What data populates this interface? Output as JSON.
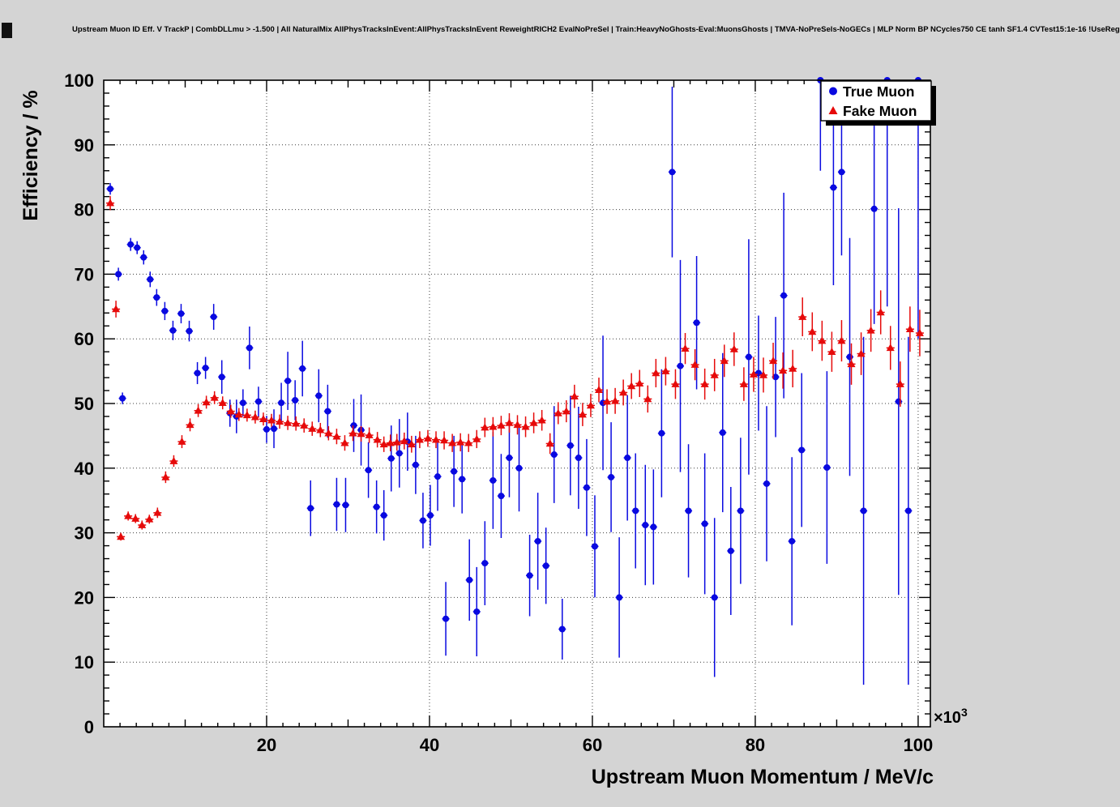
{
  "chart_data": {
    "type": "scatter",
    "title": "Upstream Muon ID Eff. V TrackP | CombDLLmu > -1.500 | All NaturalMix AllPhysTracksInEvent:AllPhysTracksInEvent ReweightRICH2 EvalNoPreSel | Train:HeavyNoGhosts-Eval:MuonsGhosts | TMVA-NoPreSels-NoGECs | MLP Norm BP NCycles750 CE tanh SF1.4 CVTest15:1e-16 !UseReg",
    "xlabel": "Upstream Muon Momentum / MeV/c",
    "ylabel": "Efficiency / %",
    "x_axis_exponent": {
      "base": "×10",
      "sup": "3"
    },
    "xlim": [
      0,
      101.5
    ],
    "ylim": [
      0,
      100
    ],
    "grid": true,
    "x_ticks": {
      "values": [
        20,
        40,
        60,
        80,
        100
      ],
      "labels": [
        "20",
        "40",
        "60",
        "80",
        "100"
      ],
      "grid": [
        20,
        40,
        60,
        80,
        100
      ]
    },
    "y_ticks": {
      "values": [
        0,
        10,
        20,
        30,
        40,
        50,
        60,
        70,
        80,
        90,
        100
      ],
      "labels": [
        "0",
        "10",
        "20",
        "30",
        "40",
        "50",
        "60",
        "70",
        "80",
        "90",
        "100"
      ],
      "grid": [
        10,
        20,
        30,
        40,
        50,
        60,
        70,
        80,
        90
      ]
    },
    "colors": {
      "canvas_bg": "#d4d4d4",
      "plot_bg": "#ffffff",
      "grid": "#3c3c3c",
      "axis": "#000000",
      "true_muon": "#0909e0",
      "fake_muon": "#e60a0a"
    },
    "legend": {
      "position": "top-right",
      "entries": [
        {
          "label": "True Muon",
          "marker": "circle",
          "color": "#0909e0"
        },
        {
          "label": "Fake Muon",
          "marker": "triangle",
          "color": "#e60a0a"
        }
      ]
    },
    "series": [
      {
        "name": "True Muon",
        "marker": "circle",
        "color": "#0909e0",
        "xerr": 0.45,
        "points": [
          [
            0.8,
            83.2,
            0.9
          ],
          [
            1.8,
            70.0,
            1.0
          ],
          [
            2.3,
            50.8,
            0.9
          ],
          [
            3.3,
            74.6,
            1.0
          ],
          [
            4.1,
            74.1,
            1.0
          ],
          [
            4.9,
            72.6,
            1.1
          ],
          [
            5.7,
            69.2,
            1.2
          ],
          [
            6.5,
            66.4,
            1.3
          ],
          [
            7.5,
            64.3,
            1.4
          ],
          [
            8.5,
            61.3,
            1.5
          ],
          [
            9.5,
            63.9,
            1.5
          ],
          [
            10.5,
            61.2,
            1.6
          ],
          [
            11.5,
            54.7,
            1.7
          ],
          [
            12.5,
            55.5,
            1.7
          ],
          [
            13.5,
            63.4,
            2.0
          ],
          [
            14.5,
            54.1,
            2.6
          ],
          [
            15.5,
            48.5,
            2.1
          ],
          [
            16.3,
            48.0,
            2.6
          ],
          [
            17.1,
            50.1,
            2.1
          ],
          [
            17.9,
            58.6,
            3.3
          ],
          [
            19.0,
            50.3,
            2.3
          ],
          [
            20.0,
            46.0,
            2.1
          ],
          [
            20.9,
            46.1,
            3.0
          ],
          [
            21.8,
            50.1,
            3.1
          ],
          [
            22.6,
            53.5,
            4.5
          ],
          [
            23.5,
            50.5,
            3.1
          ],
          [
            24.4,
            55.4,
            4.3
          ],
          [
            25.4,
            33.8,
            4.3
          ],
          [
            26.4,
            51.2,
            4.1
          ],
          [
            27.5,
            48.8,
            4.1
          ],
          [
            28.6,
            34.4,
            4.1
          ],
          [
            29.7,
            34.3,
            4.2
          ],
          [
            30.7,
            46.6,
            4.1
          ],
          [
            31.6,
            45.9,
            5.5
          ],
          [
            32.5,
            39.7,
            4.3
          ],
          [
            33.5,
            34.0,
            4.1
          ],
          [
            34.4,
            32.7,
            3.9
          ],
          [
            35.3,
            41.5,
            5.1
          ],
          [
            36.3,
            42.3,
            5.3
          ],
          [
            37.3,
            44.1,
            4.5
          ],
          [
            38.3,
            40.5,
            4.5
          ],
          [
            39.2,
            31.9,
            4.3
          ],
          [
            40.1,
            32.7,
            4.7
          ],
          [
            41.0,
            38.7,
            5.3
          ],
          [
            42.0,
            16.7,
            5.7
          ],
          [
            43.0,
            39.5,
            5.5
          ],
          [
            44.0,
            38.3,
            5.3
          ],
          [
            44.9,
            22.7,
            6.3
          ],
          [
            45.8,
            17.8,
            6.9
          ],
          [
            46.8,
            25.3,
            6.5
          ],
          [
            47.8,
            38.1,
            7.5
          ],
          [
            48.8,
            35.7,
            6.5
          ],
          [
            49.8,
            41.6,
            6.1
          ],
          [
            51.0,
            40.0,
            6.7
          ],
          [
            52.3,
            23.4,
            6.3
          ],
          [
            53.3,
            28.7,
            7.5
          ],
          [
            54.3,
            24.9,
            5.9
          ],
          [
            55.3,
            42.1,
            7.5
          ],
          [
            56.3,
            15.1,
            4.7
          ],
          [
            57.3,
            43.5,
            7.7
          ],
          [
            58.3,
            41.6,
            7.9
          ],
          [
            59.3,
            37.0,
            7.5
          ],
          [
            60.3,
            27.9,
            7.9
          ],
          [
            61.3,
            50.1,
            10.4
          ],
          [
            62.3,
            38.6,
            8.5
          ],
          [
            63.3,
            20.0,
            9.3
          ],
          [
            64.3,
            41.6,
            9.7
          ],
          [
            65.3,
            33.4,
            8.9
          ],
          [
            66.5,
            31.2,
            9.3
          ],
          [
            67.5,
            30.9,
            8.9
          ],
          [
            68.5,
            45.4,
            9.9
          ],
          [
            69.8,
            85.8,
            13.2
          ],
          [
            70.8,
            55.8,
            16.4
          ],
          [
            71.8,
            33.4,
            10.3
          ],
          [
            72.8,
            62.5,
            10.3
          ],
          [
            73.8,
            31.4,
            10.9
          ],
          [
            75.0,
            20.0,
            12.3
          ],
          [
            76.0,
            45.5,
            12.3
          ],
          [
            77.0,
            27.2,
            9.9
          ],
          [
            78.2,
            33.4,
            11.3
          ],
          [
            79.2,
            57.2,
            18.2
          ],
          [
            80.4,
            54.7,
            8.9
          ],
          [
            81.4,
            37.6,
            12.0
          ],
          [
            82.5,
            54.1,
            9.3
          ],
          [
            83.5,
            66.7,
            15.9
          ],
          [
            84.5,
            28.7,
            13.0
          ],
          [
            85.7,
            42.8,
            11.9
          ],
          [
            88.0,
            100.0,
            14.0
          ],
          [
            88.8,
            40.1,
            14.9
          ],
          [
            89.6,
            83.4,
            15.1
          ],
          [
            90.6,
            85.8,
            12.9
          ],
          [
            91.6,
            57.2,
            18.4
          ],
          [
            93.3,
            33.4,
            26.9
          ],
          [
            94.6,
            80.1,
            17.8
          ],
          [
            96.2,
            100.0,
            35.0
          ],
          [
            97.6,
            50.3,
            29.9
          ],
          [
            98.8,
            33.4,
            26.9
          ],
          [
            100.0,
            100.0,
            40.0
          ]
        ]
      },
      {
        "name": "Fake Muon",
        "marker": "triangle",
        "color": "#e60a0a",
        "xerr": 0.5,
        "points": [
          [
            0.8,
            81.0,
            1.1
          ],
          [
            1.5,
            64.6,
            1.3
          ],
          [
            2.1,
            29.4,
            0.6
          ],
          [
            3.0,
            32.6,
            0.7
          ],
          [
            3.9,
            32.2,
            0.7
          ],
          [
            4.7,
            31.2,
            0.7
          ],
          [
            5.6,
            32.1,
            0.7
          ],
          [
            6.6,
            33.1,
            0.8
          ],
          [
            7.6,
            38.6,
            0.9
          ],
          [
            8.6,
            41.1,
            0.9
          ],
          [
            9.6,
            44.1,
            1.0
          ],
          [
            10.6,
            46.7,
            1.0
          ],
          [
            11.6,
            48.9,
            1.0
          ],
          [
            12.6,
            50.2,
            1.0
          ],
          [
            13.6,
            50.9,
            1.0
          ],
          [
            14.6,
            50.1,
            1.0
          ],
          [
            15.6,
            48.8,
            1.0
          ],
          [
            16.6,
            48.3,
            1.0
          ],
          [
            17.6,
            48.2,
            1.0
          ],
          [
            18.6,
            47.9,
            1.0
          ],
          [
            19.6,
            47.6,
            1.0
          ],
          [
            20.6,
            47.4,
            1.0
          ],
          [
            21.6,
            47.2,
            1.1
          ],
          [
            22.6,
            47.0,
            1.1
          ],
          [
            23.6,
            46.9,
            1.1
          ],
          [
            24.6,
            46.6,
            1.1
          ],
          [
            25.6,
            46.1,
            1.1
          ],
          [
            26.6,
            45.9,
            1.1
          ],
          [
            27.6,
            45.4,
            1.1
          ],
          [
            28.6,
            44.9,
            1.2
          ],
          [
            29.6,
            43.9,
            1.2
          ],
          [
            30.6,
            45.4,
            1.2
          ],
          [
            31.6,
            45.3,
            1.2
          ],
          [
            32.6,
            45.1,
            1.2
          ],
          [
            33.6,
            44.4,
            1.2
          ],
          [
            34.4,
            43.7,
            1.2
          ],
          [
            35.2,
            43.9,
            1.3
          ],
          [
            36.0,
            44.0,
            1.3
          ],
          [
            36.9,
            44.2,
            1.3
          ],
          [
            37.8,
            43.7,
            1.3
          ],
          [
            38.8,
            44.4,
            1.3
          ],
          [
            39.8,
            44.6,
            1.3
          ],
          [
            40.8,
            44.4,
            1.3
          ],
          [
            41.8,
            44.3,
            1.4
          ],
          [
            42.8,
            43.9,
            1.4
          ],
          [
            43.8,
            44.0,
            1.4
          ],
          [
            44.8,
            43.9,
            1.4
          ],
          [
            45.8,
            44.5,
            1.4
          ],
          [
            46.8,
            46.3,
            1.5
          ],
          [
            47.8,
            46.4,
            1.5
          ],
          [
            48.8,
            46.6,
            1.5
          ],
          [
            49.8,
            47.0,
            1.5
          ],
          [
            50.8,
            46.7,
            1.5
          ],
          [
            51.8,
            46.4,
            1.6
          ],
          [
            52.8,
            47.0,
            1.6
          ],
          [
            53.8,
            47.4,
            1.6
          ],
          [
            54.8,
            43.8,
            1.6
          ],
          [
            55.8,
            48.5,
            1.7
          ],
          [
            56.8,
            48.8,
            1.7
          ],
          [
            57.8,
            51.1,
            1.8
          ],
          [
            58.8,
            48.3,
            1.8
          ],
          [
            59.8,
            49.7,
            1.8
          ],
          [
            60.8,
            52.1,
            1.9
          ],
          [
            61.8,
            50.3,
            1.9
          ],
          [
            62.8,
            50.4,
            2.0
          ],
          [
            63.8,
            51.7,
            2.0
          ],
          [
            64.8,
            52.7,
            2.0
          ],
          [
            65.8,
            53.1,
            2.1
          ],
          [
            66.8,
            50.7,
            2.1
          ],
          [
            67.8,
            54.7,
            2.2
          ],
          [
            69.0,
            55.0,
            2.2
          ],
          [
            70.2,
            53.0,
            2.3
          ],
          [
            71.4,
            58.5,
            2.4
          ],
          [
            72.6,
            56.0,
            2.4
          ],
          [
            73.8,
            53.0,
            2.4
          ],
          [
            75.0,
            54.4,
            2.5
          ],
          [
            76.2,
            56.6,
            2.5
          ],
          [
            77.4,
            58.4,
            2.6
          ],
          [
            78.6,
            53.0,
            2.6
          ],
          [
            79.8,
            54.5,
            2.7
          ],
          [
            81.0,
            54.4,
            2.7
          ],
          [
            82.2,
            56.6,
            2.8
          ],
          [
            83.4,
            55.1,
            2.8
          ],
          [
            84.6,
            55.4,
            2.9
          ],
          [
            85.8,
            63.4,
            3.0
          ],
          [
            87.0,
            61.1,
            3.0
          ],
          [
            88.2,
            59.7,
            3.1
          ],
          [
            89.4,
            58.0,
            3.1
          ],
          [
            90.6,
            59.7,
            3.2
          ],
          [
            91.8,
            56.1,
            3.2
          ],
          [
            93.0,
            57.7,
            3.3
          ],
          [
            94.2,
            61.3,
            3.3
          ],
          [
            95.4,
            64.1,
            3.4
          ],
          [
            96.6,
            58.6,
            3.4
          ],
          [
            97.8,
            53.0,
            3.5
          ],
          [
            99.0,
            61.5,
            3.5
          ],
          [
            100.2,
            60.9,
            3.6
          ]
        ]
      }
    ]
  }
}
